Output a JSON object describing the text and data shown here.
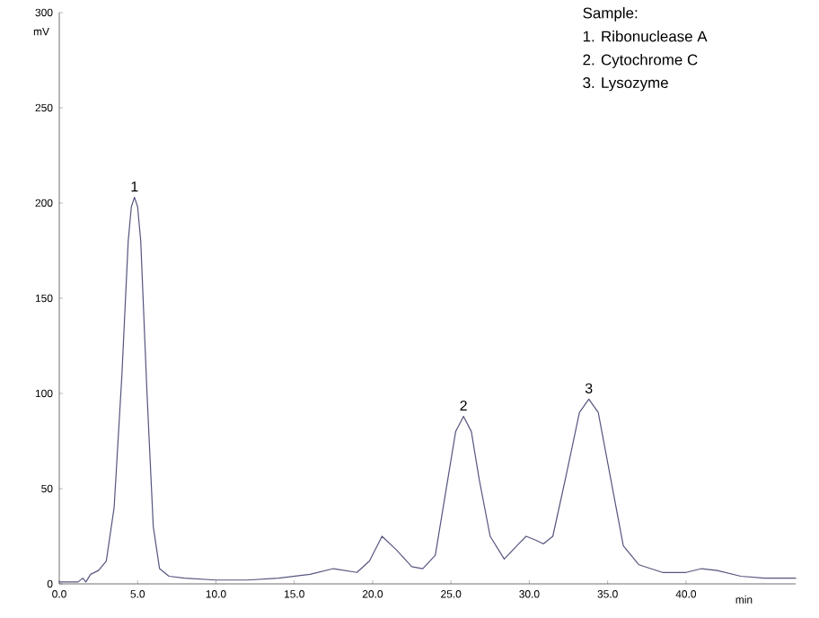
{
  "chart_data": {
    "type": "line",
    "xlabel": "min",
    "ylabel": "mV",
    "color": "#55557f",
    "x": [
      0,
      1.2,
      1.5,
      1.7,
      2.0,
      2.5,
      3.0,
      3.5,
      4.0,
      4.4,
      4.6,
      4.8,
      5.0,
      5.2,
      5.6,
      6.0,
      6.4,
      7,
      8,
      10,
      12,
      14,
      16,
      17.5,
      19,
      19.8,
      20.6,
      21.5,
      22.5,
      23.2,
      24,
      24.8,
      25.3,
      25.8,
      26.3,
      26.8,
      27.5,
      28.4,
      29.2,
      29.8,
      30.4,
      30.9,
      31.5,
      32.3,
      33.2,
      33.8,
      34.4,
      35.2,
      36,
      37,
      38.5,
      40,
      41,
      42,
      43.5,
      45,
      47
    ],
    "values": [
      1,
      1,
      3,
      1,
      5,
      7,
      12,
      40,
      110,
      180,
      198,
      203,
      198,
      180,
      100,
      30,
      8,
      4,
      3,
      2,
      2,
      3,
      5,
      8,
      6,
      12,
      25,
      18,
      9,
      8,
      15,
      55,
      80,
      88,
      80,
      55,
      25,
      13,
      20,
      25,
      23,
      21,
      25,
      55,
      90,
      97,
      90,
      55,
      20,
      10,
      6,
      6,
      8,
      7,
      4,
      3,
      3
    ],
    "xlim": [
      0,
      47
    ],
    "ylim": [
      0,
      300
    ],
    "xticks": [
      {
        "value": 0,
        "label": "0.0"
      },
      {
        "value": 5,
        "label": "5.0"
      },
      {
        "value": 10,
        "label": "10.0"
      },
      {
        "value": 15,
        "label": "15.0"
      },
      {
        "value": 20,
        "label": "20.0"
      },
      {
        "value": 25,
        "label": "25.0"
      },
      {
        "value": 30,
        "label": "30.0"
      },
      {
        "value": 35,
        "label": "35.0"
      },
      {
        "value": 40,
        "label": "40.0"
      }
    ],
    "yticks": [
      0,
      50,
      100,
      150,
      200,
      250,
      300
    ],
    "grid": false,
    "marker": "none",
    "line_style": "solid",
    "annotations": [
      "Sample:",
      "1. Ribonuclease A",
      "2. Cytochrome C",
      "3. Lysozyme",
      {
        "text": "1",
        "x": 4.8,
        "y": 203
      },
      {
        "text": "2",
        "x": 25.8,
        "y": 88
      },
      {
        "text": "3",
        "x": 33.8,
        "y": 97
      }
    ]
  }
}
